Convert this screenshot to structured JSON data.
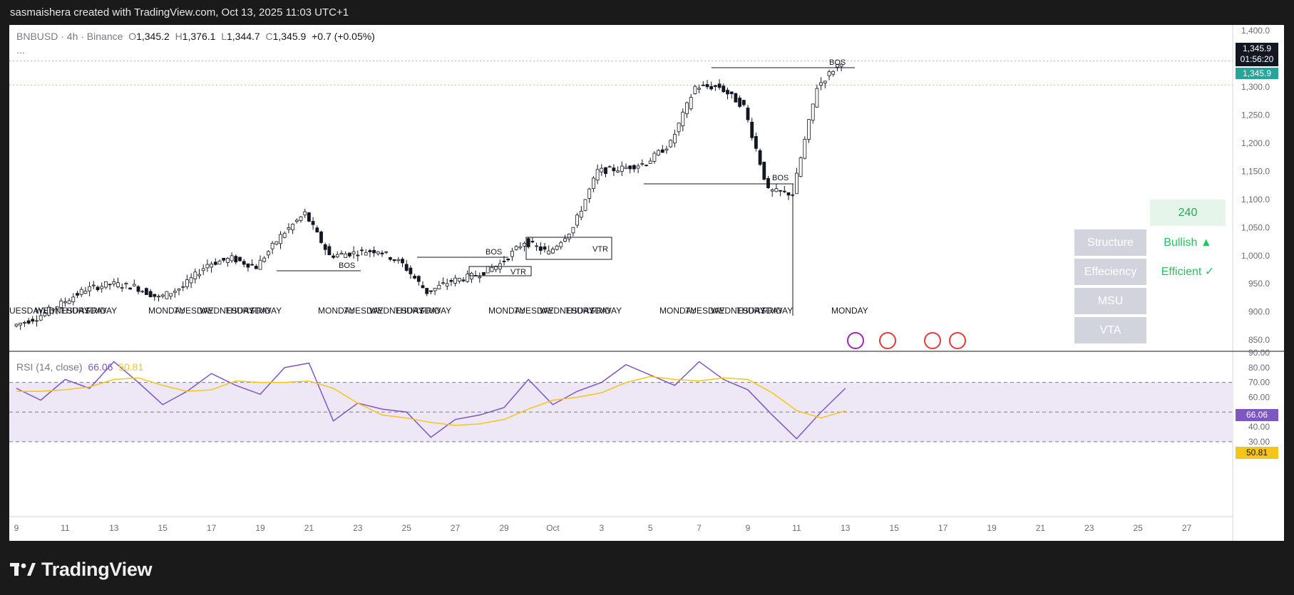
{
  "header": {
    "text": "sasmaishera created with TradingView.com, Oct 13, 2025 11:03 UTC+1"
  },
  "legend": {
    "symbol": "BNBUSD · 4h · Binance",
    "o_label": "O",
    "o": "1,345.2",
    "h_label": "H",
    "h": "1,376.1",
    "l_label": "L",
    "l": "1,344.7",
    "c_label": "C",
    "c": "1,345.9",
    "change": "+0.7 (+0.05%)",
    "more": "..."
  },
  "rsi_legend": {
    "name": "RSI (14, close)",
    "rsi": "66.06",
    "ma": "50.81"
  },
  "price_badges": {
    "last": "1,345.9",
    "countdown": "01:56:20",
    "last2": "1,345.9",
    "rsi": "66.06",
    "rsi_ma": "50.81"
  },
  "table": {
    "top": "240",
    "rows": [
      {
        "label": "Structure",
        "value": "Bullish ▲"
      },
      {
        "label": "Effeciency",
        "value": "Efficient ✓"
      },
      {
        "label": "MSU",
        "value": ""
      },
      {
        "label": "VTA",
        "value": ""
      }
    ]
  },
  "annotations": {
    "bos": [
      "BOS",
      "BOS",
      "BOS",
      "BOS"
    ],
    "vtr": [
      "VTR",
      "VTR"
    ],
    "day_labels": [
      "UESDAY",
      "WEDNESDAY",
      "THURSDAY",
      "FRIDAY",
      "MONDAY",
      "TUESDAY",
      "WEDNESDAY",
      "THURSDAY",
      "FRIDAY",
      "MONDAY",
      "TUESDAY",
      "WEDNESDAY",
      "THURSDAY",
      "FRIDAY",
      "MONDAY",
      "TUESDAY",
      "WEDNESDAY",
      "THURSDAY",
      "FRIDAY",
      "MONDAY",
      "TUESDAY",
      "WEDNESDAY",
      "THURSDAY",
      "FRIDAY",
      "MONDAY"
    ]
  },
  "footer": {
    "brand": "TradingView"
  },
  "colors": {
    "bull": "#22c55e",
    "bear": "#ef4444",
    "rsi": "#7e57c2",
    "rsi_ma": "#f5c518",
    "rsi_band": "#ede7f6",
    "badge_dark": "#131722",
    "badge_green": "#26a69a"
  },
  "chart_data": [
    {
      "type": "candlestick",
      "title": "BNBUSD · 4h · Binance",
      "x_ticks": [
        "9",
        "11",
        "13",
        "15",
        "17",
        "19",
        "21",
        "23",
        "25",
        "27",
        "29",
        "Oct",
        "3",
        "5",
        "7",
        "9",
        "11",
        "13",
        "15",
        "17",
        "19",
        "21",
        "23",
        "25",
        "27"
      ],
      "y_ticks": [
        "1,400.0",
        "1,300.0",
        "1,250.0",
        "1,200.0",
        "1,150.0",
        "1,100.0",
        "1,050.0",
        "1,000.0",
        "950.0",
        "900.0",
        "850.0"
      ],
      "ylim": [
        830,
        1410
      ],
      "series": [
        {
          "name": "BNBUSD",
          "x": [
            "9",
            "10",
            "11",
            "12",
            "13",
            "14",
            "15",
            "16",
            "17",
            "18",
            "19",
            "20",
            "21",
            "22",
            "23",
            "24",
            "25",
            "26",
            "27",
            "28",
            "29",
            "30",
            "Oct",
            "2",
            "3",
            "4",
            "5",
            "6",
            "7",
            "8",
            "9",
            "10",
            "11",
            "12",
            "13"
          ],
          "close": [
            875,
            890,
            915,
            940,
            950,
            945,
            925,
            945,
            985,
            995,
            980,
            1035,
            1075,
            1000,
            1005,
            1010,
            985,
            935,
            955,
            965,
            985,
            1025,
            1005,
            1050,
            1150,
            1155,
            1165,
            1200,
            1300,
            1300,
            1265,
            1115,
            1110,
            1300,
            1345.9
          ]
        }
      ],
      "last_price": 1345.9
    },
    {
      "type": "line",
      "title": "RSI (14, close)",
      "y_ticks": [
        "90.00",
        "80.00",
        "70.00",
        "60.00",
        "50.00",
        "40.00",
        "30.00"
      ],
      "ylim": [
        28,
        91
      ],
      "bands": [
        30,
        50,
        70
      ],
      "series": [
        {
          "name": "RSI",
          "x": [
            "9",
            "10",
            "11",
            "12",
            "13",
            "14",
            "15",
            "16",
            "17",
            "18",
            "19",
            "20",
            "21",
            "22",
            "23",
            "24",
            "25",
            "26",
            "27",
            "28",
            "29",
            "30",
            "Oct",
            "2",
            "3",
            "4",
            "5",
            "6",
            "7",
            "8",
            "9",
            "10",
            "11",
            "12",
            "13"
          ],
          "values": [
            66,
            58,
            72,
            66,
            84,
            70,
            55,
            64,
            76,
            68,
            62,
            80,
            83,
            44,
            56,
            52,
            50,
            33,
            45,
            48,
            53,
            72,
            55,
            64,
            70,
            82,
            75,
            68,
            84,
            72,
            65,
            48,
            32,
            50,
            66.06
          ]
        },
        {
          "name": "RSI-based MA",
          "values": [
            64,
            64,
            65,
            67,
            72,
            73,
            68,
            64,
            65,
            71,
            70,
            70,
            71,
            66,
            56,
            48,
            46,
            43,
            41,
            42,
            45,
            52,
            58,
            60,
            63,
            70,
            74,
            72,
            71,
            73,
            72,
            63,
            51,
            46,
            50.81
          ]
        }
      ]
    }
  ]
}
